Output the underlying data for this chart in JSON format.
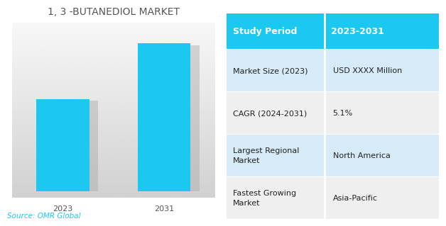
{
  "chart_title": "1, 3 -BUTANEDIOL MARKET",
  "bar_categories": [
    "2023",
    "2031"
  ],
  "bar_values": [
    45,
    72
  ],
  "bar_color": "#1BC8F0",
  "source_text": "Source: OMR Global",
  "table_header_col1": "Study Period",
  "table_header_col2": "2023-2031",
  "table_header_bg": "#1BC8F0",
  "table_header_text_color": "#FFFFFF",
  "table_rows": [
    [
      "Market Size (2023)",
      "USD XXXX Million"
    ],
    [
      "CAGR (2024-2031)",
      "5.1%"
    ],
    [
      "Largest Regional\nMarket",
      "North America"
    ],
    [
      "Fastest Growing\nMarket",
      "Asia-Pacific"
    ]
  ],
  "table_row_bg_odd": "#D6EAF8",
  "table_row_bg_even": "#EFEFEF",
  "table_text_color": "#222222",
  "title_fontsize": 10,
  "tick_fontsize": 8,
  "source_fontsize": 7.5,
  "table_fontsize": 8,
  "table_header_fontsize": 9
}
